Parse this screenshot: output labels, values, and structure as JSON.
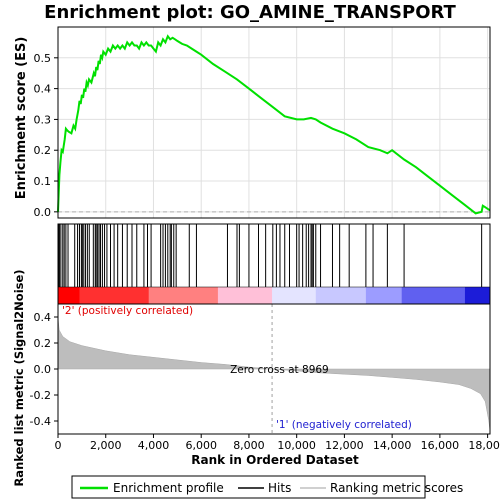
{
  "chart_data": {
    "type": "line",
    "title": "Enrichment plot: GO_AMINE_TRANSPORT",
    "top_panel": {
      "ylabel": "Enrichment score (ES)",
      "yticks": [
        "0.0",
        "0.1",
        "0.2",
        "0.3",
        "0.4",
        "0.5"
      ],
      "ylim": [
        -0.02,
        0.6
      ],
      "grid": true,
      "series": [
        {
          "name": "Enrichment profile",
          "color": "#00e000",
          "x": [
            0,
            30,
            60,
            100,
            150,
            200,
            280,
            330,
            380,
            450,
            560,
            650,
            720,
            780,
            850,
            900,
            950,
            1000,
            1050,
            1100,
            1150,
            1200,
            1250,
            1300,
            1400,
            1500,
            1550,
            1600,
            1650,
            1700,
            1750,
            1800,
            1850,
            1900,
            2000,
            2100,
            2200,
            2300,
            2400,
            2500,
            2600,
            2700,
            2800,
            2900,
            3000,
            3100,
            3200,
            3300,
            3400,
            3500,
            3600,
            3700,
            3800,
            3900,
            4000,
            4100,
            4200,
            4300,
            4400,
            4500,
            4600,
            4700,
            4800,
            4900,
            5000,
            5100,
            5200,
            5400,
            5600,
            5800,
            6000,
            6500,
            7000,
            7500,
            8000,
            8500,
            9000,
            9500,
            10000,
            10300,
            10600,
            10800,
            11000,
            11500,
            12000,
            12500,
            13000,
            13500,
            13800,
            14000,
            14500,
            15000,
            15500,
            16000,
            16500,
            17000,
            17500,
            17750,
            17800,
            17900,
            18000,
            18100
          ],
          "y": [
            0.0,
            0.06,
            0.12,
            0.16,
            0.2,
            0.195,
            0.235,
            0.27,
            0.265,
            0.26,
            0.255,
            0.28,
            0.27,
            0.3,
            0.33,
            0.36,
            0.35,
            0.38,
            0.37,
            0.4,
            0.39,
            0.42,
            0.41,
            0.43,
            0.42,
            0.45,
            0.44,
            0.47,
            0.46,
            0.49,
            0.48,
            0.51,
            0.5,
            0.52,
            0.51,
            0.53,
            0.52,
            0.54,
            0.53,
            0.54,
            0.53,
            0.54,
            0.53,
            0.55,
            0.54,
            0.55,
            0.54,
            0.54,
            0.53,
            0.55,
            0.54,
            0.55,
            0.54,
            0.54,
            0.53,
            0.52,
            0.55,
            0.54,
            0.56,
            0.55,
            0.57,
            0.56,
            0.565,
            0.56,
            0.555,
            0.55,
            0.545,
            0.54,
            0.53,
            0.52,
            0.51,
            0.48,
            0.455,
            0.43,
            0.4,
            0.37,
            0.34,
            0.31,
            0.3,
            0.3,
            0.305,
            0.3,
            0.29,
            0.27,
            0.255,
            0.235,
            0.21,
            0.2,
            0.19,
            0.2,
            0.17,
            0.145,
            0.115,
            0.085,
            0.055,
            0.025,
            -0.005,
            0.0,
            0.02,
            0.015,
            0.01,
            0.005
          ]
        }
      ]
    },
    "hits_panel": {
      "label": "Hits",
      "hit_positions": [
        20,
        60,
        120,
        200,
        260,
        330,
        420,
        700,
        820,
        900,
        980,
        1020,
        1080,
        1150,
        1230,
        1310,
        1480,
        1560,
        1600,
        1660,
        1720,
        1780,
        1860,
        1950,
        2050,
        2200,
        2350,
        2500,
        2700,
        2900,
        3100,
        3300,
        3600,
        3750,
        3900,
        4300,
        4400,
        4500,
        4600,
        4700,
        4750,
        4850,
        4950,
        5500,
        5800,
        7100,
        7500,
        7600,
        8000,
        8400,
        8700,
        9000,
        9150,
        9300,
        9500,
        9700,
        10000,
        10100,
        10250,
        10400,
        10500,
        10600,
        10650,
        10700,
        10800,
        11000,
        11500,
        11800,
        12200,
        12900,
        13200,
        13800,
        14500,
        17750
      ]
    },
    "gradient_bar": {
      "label": "Ranking metric scores",
      "x_max": 18100,
      "colors": [
        "#ff0000",
        "#ff8080",
        "#ffc8d8",
        "#e8e8ff",
        "#c8c8ff",
        "#8080ff",
        "#2020e0"
      ]
    },
    "bottom_panel": {
      "ylabel": "Ranked list metric (Signal2Noise)",
      "yticks": [
        "0.4",
        "0.2",
        "0.0",
        "-0.2",
        "-0.4"
      ],
      "ylim": [
        -0.5,
        0.5
      ],
      "metric": {
        "x": [
          0,
          50,
          200,
          500,
          1000,
          2000,
          3000,
          4000,
          5000,
          6000,
          7000,
          8000,
          8969,
          10000,
          11000,
          12000,
          13000,
          14000,
          15000,
          16000,
          16800,
          17300,
          17700,
          17900,
          18050,
          18100
        ],
        "y": [
          0.4,
          0.3,
          0.25,
          0.21,
          0.18,
          0.14,
          0.11,
          0.09,
          0.07,
          0.05,
          0.035,
          0.015,
          0.0,
          -0.015,
          -0.03,
          -0.04,
          -0.05,
          -0.065,
          -0.08,
          -0.1,
          -0.12,
          -0.15,
          -0.19,
          -0.25,
          -0.4,
          -0.48
        ]
      },
      "annotations": {
        "positive": "'2' (positively correlated)",
        "zero_cross": "Zero cross at 8969",
        "negative": "'1' (negatively correlated)"
      },
      "zero_cross_x": 8969,
      "positive_color": "#e00000",
      "negative_color": "#2020d0"
    },
    "xlabel": "Rank in Ordered Dataset",
    "xticks": [
      "0",
      "2,000",
      "4,000",
      "6,000",
      "8,000",
      "10,000",
      "12,000",
      "14,000",
      "16,000",
      "18,000"
    ],
    "xlim": [
      0,
      18100
    ],
    "legend": {
      "position": "bottom",
      "items": [
        {
          "label": "Enrichment profile",
          "color": "#00e000"
        },
        {
          "label": "Hits",
          "color": "#000000"
        },
        {
          "label": "Ranking metric scores",
          "color": "#c0c0c0"
        }
      ]
    }
  }
}
